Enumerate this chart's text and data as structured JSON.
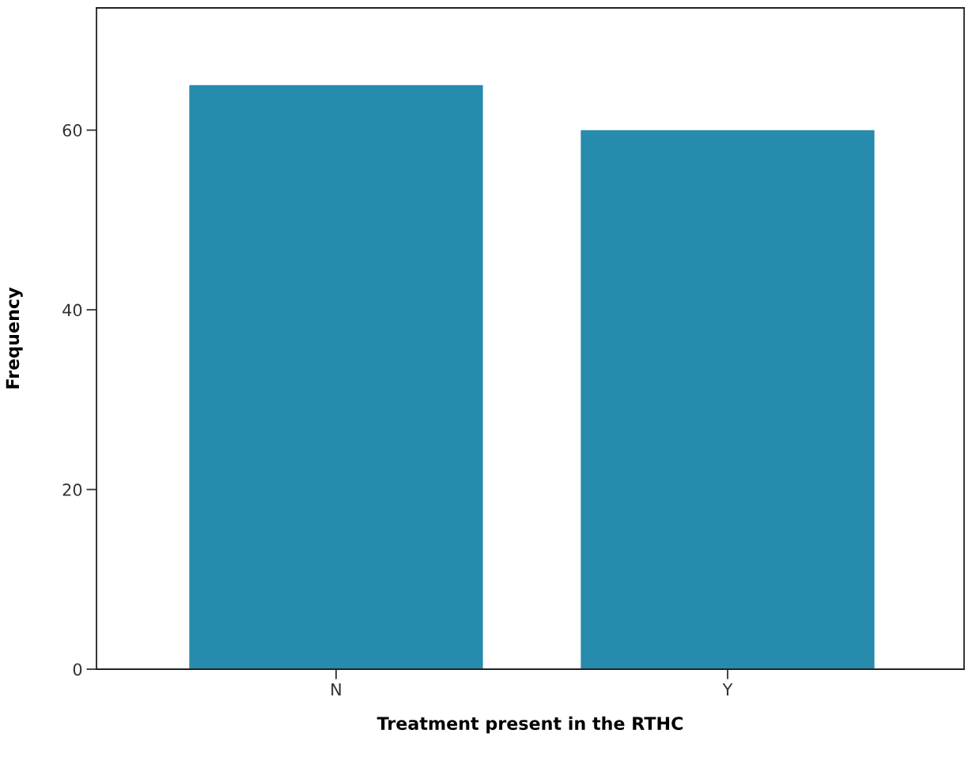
{
  "chart_data": {
    "type": "bar",
    "xlabel": "Treatment present in the RTHC",
    "ylabel": "Frequency",
    "categories": [
      "N",
      "Y"
    ],
    "values": [
      65,
      60
    ],
    "color": "#268bac",
    "ylim": [
      0,
      73.6
    ],
    "yticks": [
      0,
      20,
      40,
      60
    ],
    "grid": false
  }
}
